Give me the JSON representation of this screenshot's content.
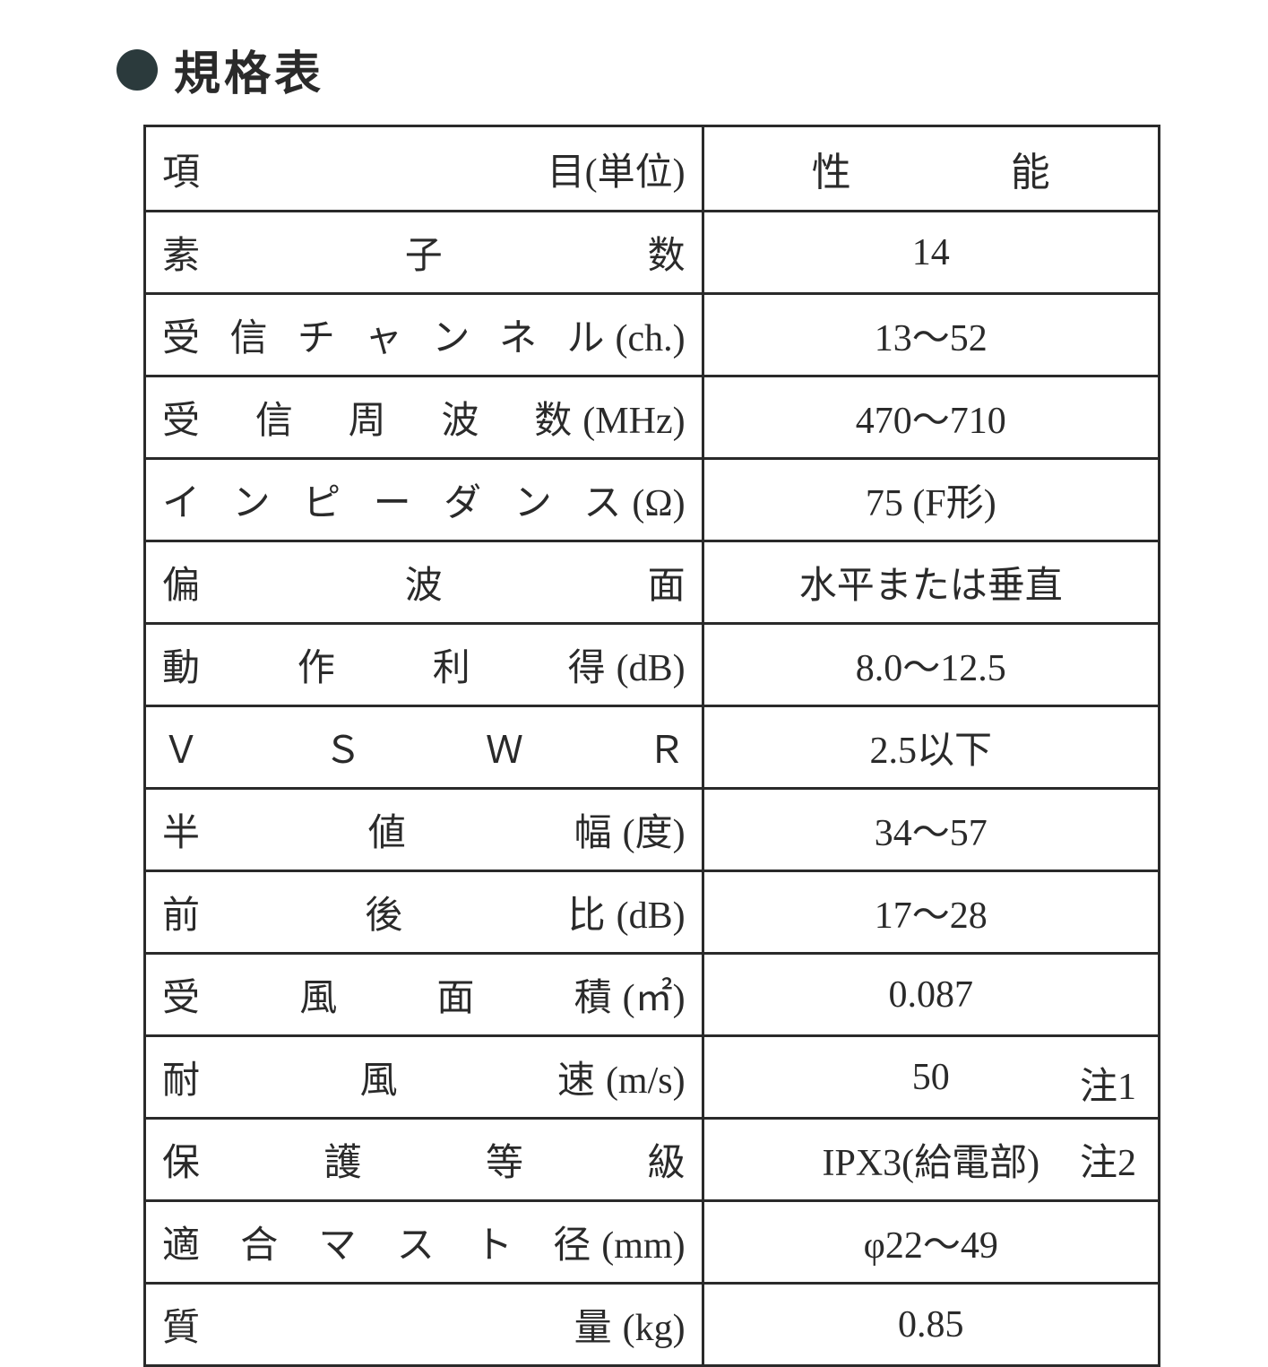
{
  "title": "規格表",
  "table": {
    "type": "table",
    "border_color": "#2a2a2a",
    "background_color": "#ffffff",
    "text_color": "#2a2a2a",
    "font_family": "serif",
    "cell_fontsize": 42,
    "title_fontsize": 52,
    "border_width": 3,
    "column_widths": [
      "55%",
      "45%"
    ],
    "header": {
      "item": "項　　目",
      "item_suffix": "(単位)",
      "value": "性　　能"
    },
    "rows": [
      {
        "label": "素　子　数",
        "unit": "",
        "value": "14"
      },
      {
        "label": "受信チャンネル",
        "unit": "(ch.)",
        "value": "13～52"
      },
      {
        "label": "受信周波数",
        "unit": "(MHz)",
        "value": "470～710"
      },
      {
        "label": "インピーダンス",
        "unit": "(Ω)",
        "value": "75 (F形)"
      },
      {
        "label": "偏　波　面",
        "unit": "",
        "value": "水平または垂直"
      },
      {
        "label": "動作利得",
        "unit": "(dB)",
        "value": "8.0～12.5"
      },
      {
        "label": "Ｖ Ｓ Ｗ Ｒ",
        "unit": "",
        "value": "2.5以下"
      },
      {
        "label": "半　値　幅",
        "unit": "(度)",
        "value": "34～57"
      },
      {
        "label": "前　後　比",
        "unit": "(dB)",
        "value": "17～28"
      },
      {
        "label": "受風面積",
        "unit": "(㎡)",
        "value": "0.087"
      },
      {
        "label": "耐　風　速",
        "unit": "(m/s)",
        "value": "50",
        "note": "注1"
      },
      {
        "label": "保護等級",
        "unit": "",
        "value": "IPX3(給電部)",
        "note": "注2"
      },
      {
        "label": "適合マスト径",
        "unit": "(mm)",
        "value": "φ22～49"
      },
      {
        "label": "質　　量",
        "unit": "(kg)",
        "value": "0.85"
      }
    ]
  }
}
